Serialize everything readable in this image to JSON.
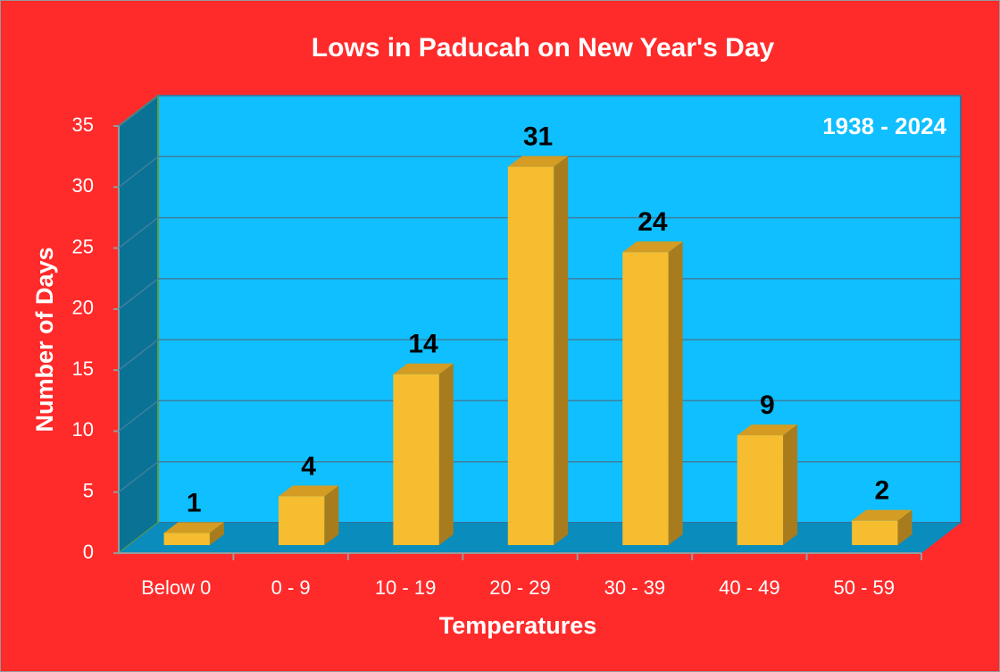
{
  "chart_data": {
    "type": "bar",
    "title": "Lows in Paducah on New Year's Day",
    "annotation": "1938 - 2024",
    "x_label": "Temperatures",
    "y_label": "Number of Days",
    "categories": [
      "Below 0",
      "0 - 9",
      "10 - 19",
      "20 - 29",
      "30 - 39",
      "40 - 49",
      "50 - 59"
    ],
    "values": [
      1,
      4,
      14,
      31,
      24,
      9,
      2
    ],
    "color": "#f5bd2f",
    "ylim": [
      0,
      35
    ],
    "yticks": [
      0,
      5,
      10,
      15,
      20,
      25,
      30,
      35
    ],
    "grid": true
  }
}
